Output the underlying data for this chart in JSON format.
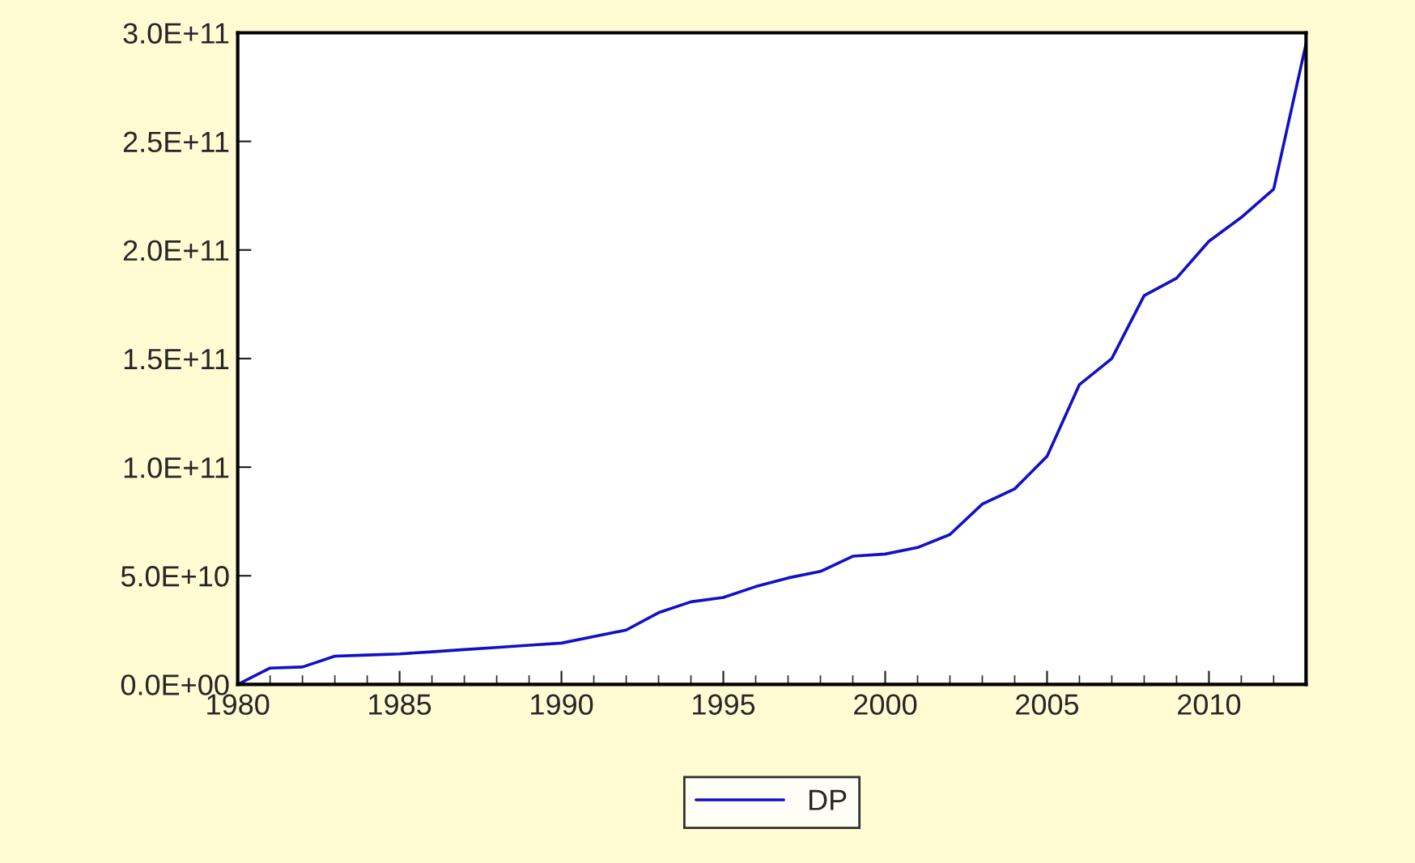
{
  "chart_data": {
    "type": "line",
    "x": [
      1980,
      1981,
      1982,
      1983,
      1984,
      1985,
      1986,
      1987,
      1988,
      1989,
      1990,
      1991,
      1992,
      1993,
      1994,
      1995,
      1996,
      1997,
      1998,
      1999,
      2000,
      2001,
      2002,
      2003,
      2004,
      2005,
      2006,
      2007,
      2008,
      2009,
      2010,
      2011,
      2012,
      2013
    ],
    "series": [
      {
        "name": "DP",
        "color": "#1010c8",
        "values": [
          0,
          7500000000.0,
          8000000000.0,
          13000000000.0,
          13500000000.0,
          14000000000.0,
          15000000000.0,
          16000000000.0,
          17000000000.0,
          18000000000.0,
          19000000000.0,
          22000000000.0,
          25000000000.0,
          33000000000.0,
          38000000000.0,
          40000000000.0,
          45000000000.0,
          49000000000.0,
          52000000000.0,
          59000000000.0,
          60000000000.0,
          63000000000.0,
          69000000000.0,
          83000000000.0,
          90000000000.0,
          105000000000.0,
          138000000000.0,
          150000000000.0,
          179000000000.0,
          187000000000.0,
          204000000000.0,
          215000000000.0,
          228000000000.0,
          295000000000.0
        ]
      }
    ],
    "xlim": [
      1980,
      2013
    ],
    "xticks": [
      1980,
      1985,
      1990,
      1995,
      2000,
      2005,
      2010
    ],
    "ylim": [
      0,
      300000000000.0
    ],
    "yticks": [
      {
        "value": 0,
        "label": "0.0E+00"
      },
      {
        "value": 50000000000.0,
        "label": "5.0E+10"
      },
      {
        "value": 100000000000.0,
        "label": "1.0E+11"
      },
      {
        "value": 150000000000.0,
        "label": "1.5E+11"
      },
      {
        "value": 200000000000.0,
        "label": "2.0E+11"
      },
      {
        "value": 250000000000.0,
        "label": "2.5E+11"
      },
      {
        "value": 300000000000.0,
        "label": "3.0E+11"
      }
    ],
    "legend": "bottom",
    "grid": false,
    "line_style": "solid",
    "marker": "none"
  }
}
